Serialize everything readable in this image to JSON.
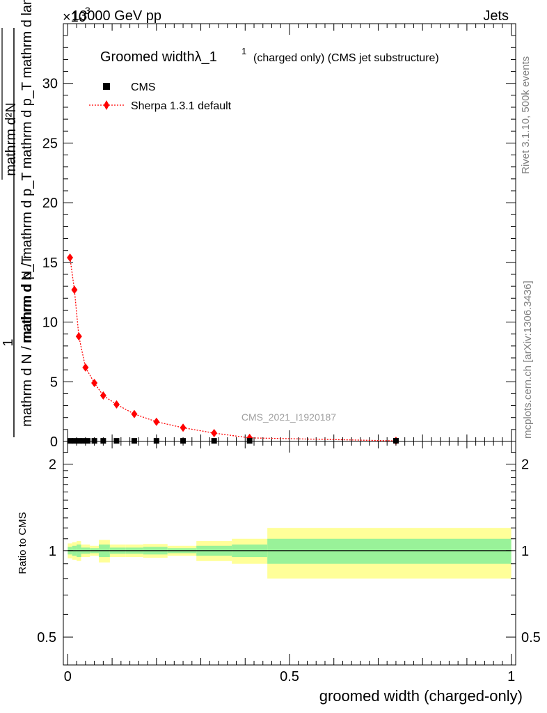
{
  "header": {
    "left_label": "13000 GeV pp",
    "right_label": "Jets",
    "exponent_label": "×10",
    "exponent_power": "3"
  },
  "side_labels": {
    "rivet": "Rivet 3.1.10,  500k events",
    "mcplots": "mcplots.cern.ch [arXiv:1306.3436]"
  },
  "watermark": "CMS_2021_I1920187",
  "legend": {
    "title_main": "Groomed widthλ_1",
    "title_sup": "1",
    "title_rest": "(charged only) (CMS jet substructure)",
    "entries": [
      {
        "label": "CMS",
        "color": "#000000"
      },
      {
        "label": "Sherpa 1.3.1 default",
        "color": "#ff0000"
      }
    ]
  },
  "chart_data": {
    "type": "scatter",
    "title": "Groomed widthλ_1^1 (charged only) (CMS jet substructure)",
    "xlabel": "groomed width (charged-only)",
    "ylabel": {
      "numerator": "mathrm d²N",
      "frac_one": "1",
      "main": "mathrm d N / mathrm d p_T mathrm d p_T mathrm d lambda",
      "denominator": "mathrm d N / mathrm d p_T"
    },
    "ratio_ylabel": "Ratio to CMS",
    "xlim": [
      -0.01,
      1.01
    ],
    "ylim": [
      0,
      35000
    ],
    "ratio_ylim": [
      0.4,
      2.4
    ],
    "x_ticks": [
      0,
      0.5,
      1
    ],
    "x_tick_labels": [
      "0",
      "0.5",
      "1"
    ],
    "y_ticks": [
      0,
      5000,
      10000,
      15000,
      20000,
      25000,
      30000
    ],
    "y_tick_labels": [
      "0",
      "5",
      "10",
      "15",
      "20",
      "25",
      "30"
    ],
    "ratio_y_ticks": [
      0.5,
      1,
      2
    ],
    "ratio_y_tick_labels": [
      "0.5",
      "1",
      "2"
    ],
    "series": [
      {
        "name": "CMS",
        "color": "#000000",
        "marker": "square",
        "x": [
          0.005,
          0.015,
          0.025,
          0.035,
          0.045,
          0.06,
          0.08,
          0.11,
          0.15,
          0.2,
          0.26,
          0.33,
          0.41,
          0.74
        ],
        "y": [
          50,
          50,
          50,
          50,
          50,
          50,
          50,
          50,
          50,
          50,
          50,
          50,
          50,
          60
        ]
      },
      {
        "name": "Sherpa 1.3.1 default",
        "color": "#ff0000",
        "marker": "diamond",
        "line": "dotted",
        "x": [
          0.005,
          0.015,
          0.025,
          0.04,
          0.06,
          0.08,
          0.11,
          0.15,
          0.2,
          0.26,
          0.33,
          0.41,
          0.74
        ],
        "y": [
          15400,
          12700,
          8800,
          6200,
          4900,
          3850,
          3100,
          2300,
          1650,
          1150,
          700,
          300,
          50
        ]
      }
    ],
    "ratio_bands": [
      {
        "x0": 0.0,
        "x1": 0.01,
        "g": 0.03,
        "y": 0.06
      },
      {
        "x0": 0.01,
        "x1": 0.02,
        "g": 0.04,
        "y": 0.07
      },
      {
        "x0": 0.02,
        "x1": 0.03,
        "g": 0.05,
        "y": 0.08
      },
      {
        "x0": 0.03,
        "x1": 0.05,
        "g": 0.025,
        "y": 0.05
      },
      {
        "x0": 0.05,
        "x1": 0.07,
        "g": 0.02,
        "y": 0.04
      },
      {
        "x0": 0.07,
        "x1": 0.095,
        "g": 0.05,
        "y": 0.09
      },
      {
        "x0": 0.095,
        "x1": 0.13,
        "g": 0.025,
        "y": 0.05
      },
      {
        "x0": 0.13,
        "x1": 0.17,
        "g": 0.025,
        "y": 0.05
      },
      {
        "x0": 0.17,
        "x1": 0.225,
        "g": 0.03,
        "y": 0.055
      },
      {
        "x0": 0.225,
        "x1": 0.29,
        "g": 0.02,
        "y": 0.04
      },
      {
        "x0": 0.29,
        "x1": 0.37,
        "g": 0.04,
        "y": 0.08
      },
      {
        "x0": 0.37,
        "x1": 0.45,
        "g": 0.05,
        "y": 0.1
      },
      {
        "x0": 0.45,
        "x1": 1.0,
        "g": 0.1,
        "y": 0.2
      }
    ],
    "ratio_band_colors": {
      "inner": "#99f299",
      "outer": "#ffff99"
    }
  }
}
